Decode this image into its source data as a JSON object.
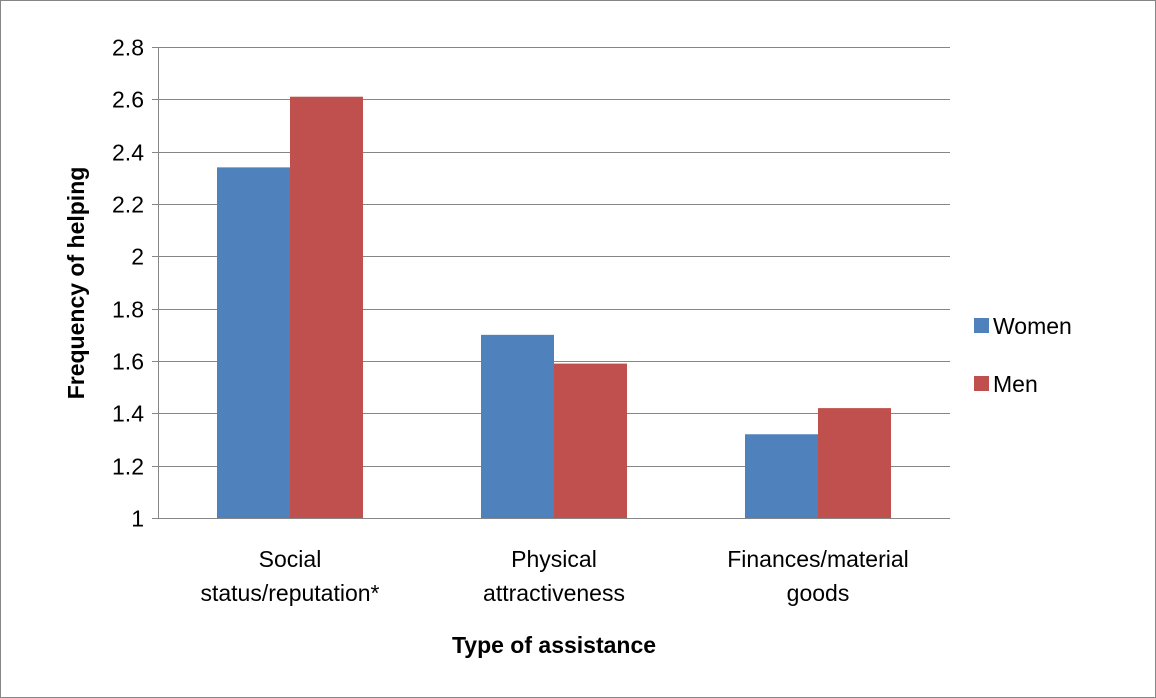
{
  "chart_data": {
    "type": "bar",
    "title": "",
    "xlabel": "Type of assistance",
    "ylabel": "Frequency of helping",
    "categories": [
      [
        "Social",
        "status/reputation*"
      ],
      [
        "Physical",
        "attractiveness"
      ],
      [
        "Finances/material",
        "goods"
      ]
    ],
    "series": [
      {
        "name": "Women",
        "color": "#4F81BD",
        "values": [
          2.34,
          1.7,
          1.32
        ]
      },
      {
        "name": "Men",
        "color": "#C0504D",
        "values": [
          2.61,
          1.59,
          1.42
        ]
      }
    ],
    "ylim": [
      1,
      2.8
    ],
    "yticks": [
      "1",
      "1.2",
      "1.4",
      "1.6",
      "1.8",
      "2",
      "2.2",
      "2.4",
      "2.6",
      "2.8"
    ],
    "grid": true,
    "legend_position": "right"
  }
}
